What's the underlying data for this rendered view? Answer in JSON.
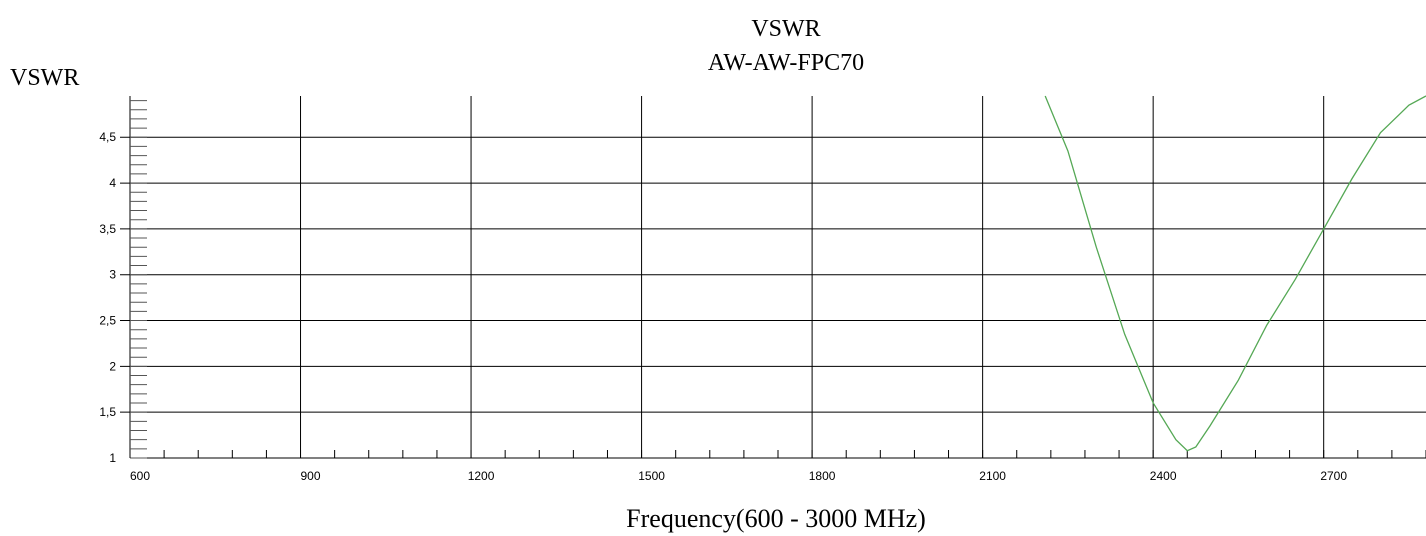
{
  "chart_data": {
    "type": "line",
    "title": "VSWR",
    "subtitle": "AW-AW-FPC70",
    "ylabel": "VSWR",
    "xlabel": "Frequency(600 - 3000 MHz)",
    "xlim": [
      600,
      2880
    ],
    "ylim": [
      1,
      4.95
    ],
    "x_ticks": [
      600,
      900,
      1200,
      1500,
      1800,
      2100,
      2400,
      2700
    ],
    "x_tick_labels": [
      "600",
      "900",
      "1200",
      "1500",
      "1800",
      "2100",
      "2400",
      "2700"
    ],
    "y_ticks": [
      1,
      1.5,
      2,
      2.5,
      3,
      3.5,
      4,
      4.5
    ],
    "y_tick_labels": [
      "1",
      "1,5",
      "2",
      "2,5",
      "3",
      "3,5",
      "4",
      "4,5"
    ],
    "grid": true,
    "series": [
      {
        "color": "#55a855",
        "x": [
          2210,
          2250,
          2300,
          2350,
          2400,
          2440,
          2460,
          2475,
          2500,
          2550,
          2600,
          2650,
          2700,
          2750,
          2800,
          2850,
          2880
        ],
        "y": [
          4.95,
          4.35,
          3.3,
          2.35,
          1.6,
          1.2,
          1.08,
          1.12,
          1.35,
          1.85,
          2.45,
          2.95,
          3.5,
          4.05,
          4.55,
          4.85,
          4.95
        ]
      }
    ]
  }
}
